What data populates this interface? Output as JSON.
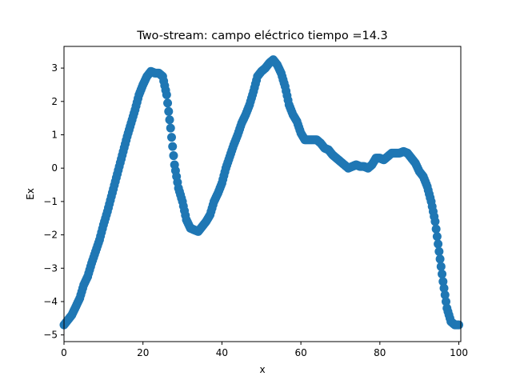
{
  "chart_data": {
    "type": "scatter",
    "title": "Two-stream: campo eléctrico  tiempo =14.3",
    "xlabel": "x",
    "ylabel": "Ex",
    "xlim": [
      0,
      100.5
    ],
    "ylim": [
      -5.2,
      3.65
    ],
    "xticks": [
      0,
      20,
      40,
      60,
      80,
      100
    ],
    "yticks": [
      -5,
      -4,
      -3,
      -2,
      -1,
      0,
      1,
      2,
      3
    ],
    "grid": false,
    "legend": "none",
    "marker_color": "#1f77b4",
    "series": [
      {
        "points": [
          [
            0,
            -4.7
          ],
          [
            1,
            -4.55
          ],
          [
            2,
            -4.4
          ],
          [
            3,
            -4.15
          ],
          [
            4,
            -3.9
          ],
          [
            5,
            -3.5
          ],
          [
            6,
            -3.25
          ],
          [
            7,
            -2.85
          ],
          [
            8,
            -2.5
          ],
          [
            9,
            -2.15
          ],
          [
            10,
            -1.7
          ],
          [
            11,
            -1.3
          ],
          [
            12,
            -0.85
          ],
          [
            13,
            -0.4
          ],
          [
            14,
            0.05
          ],
          [
            15,
            0.5
          ],
          [
            16,
            0.95
          ],
          [
            17,
            1.35
          ],
          [
            18,
            1.75
          ],
          [
            19,
            2.2
          ],
          [
            20,
            2.5
          ],
          [
            21,
            2.75
          ],
          [
            22,
            2.9
          ],
          [
            23,
            2.85
          ],
          [
            24,
            2.85
          ],
          [
            25,
            2.75
          ],
          [
            26,
            2.2
          ],
          [
            27,
            1.2
          ],
          [
            28,
            0.1
          ],
          [
            29,
            -0.6
          ],
          [
            30,
            -1.0
          ],
          [
            31,
            -1.55
          ],
          [
            32,
            -1.8
          ],
          [
            33,
            -1.85
          ],
          [
            34,
            -1.9
          ],
          [
            35,
            -1.75
          ],
          [
            36,
            -1.6
          ],
          [
            37,
            -1.4
          ],
          [
            38,
            -1.0
          ],
          [
            39,
            -0.75
          ],
          [
            40,
            -0.45
          ],
          [
            41,
            0.0
          ],
          [
            42,
            0.35
          ],
          [
            43,
            0.7
          ],
          [
            44,
            1.0
          ],
          [
            45,
            1.35
          ],
          [
            46,
            1.6
          ],
          [
            47,
            1.9
          ],
          [
            48,
            2.3
          ],
          [
            49,
            2.75
          ],
          [
            50,
            2.9
          ],
          [
            51,
            3.0
          ],
          [
            52,
            3.15
          ],
          [
            53,
            3.25
          ],
          [
            54,
            3.1
          ],
          [
            55,
            2.85
          ],
          [
            56,
            2.45
          ],
          [
            57,
            1.9
          ],
          [
            58,
            1.6
          ],
          [
            59,
            1.4
          ],
          [
            60,
            1.05
          ],
          [
            61,
            0.85
          ],
          [
            62,
            0.85
          ],
          [
            63,
            0.85
          ],
          [
            64,
            0.85
          ],
          [
            65,
            0.75
          ],
          [
            66,
            0.6
          ],
          [
            67,
            0.55
          ],
          [
            68,
            0.4
          ],
          [
            69,
            0.3
          ],
          [
            70,
            0.2
          ],
          [
            71,
            0.1
          ],
          [
            72,
            0.0
          ],
          [
            73,
            0.05
          ],
          [
            74,
            0.1
          ],
          [
            75,
            0.05
          ],
          [
            76,
            0.05
          ],
          [
            77,
            0.0
          ],
          [
            78,
            0.1
          ],
          [
            79,
            0.3
          ],
          [
            80,
            0.3
          ],
          [
            81,
            0.25
          ],
          [
            82,
            0.35
          ],
          [
            83,
            0.45
          ],
          [
            84,
            0.45
          ],
          [
            85,
            0.45
          ],
          [
            86,
            0.5
          ],
          [
            87,
            0.45
          ],
          [
            88,
            0.3
          ],
          [
            89,
            0.15
          ],
          [
            90,
            -0.1
          ],
          [
            91,
            -0.25
          ],
          [
            92,
            -0.55
          ],
          [
            93,
            -1.0
          ],
          [
            94,
            -1.6
          ],
          [
            95,
            -2.5
          ],
          [
            96,
            -3.4
          ],
          [
            97,
            -4.2
          ],
          [
            98,
            -4.6
          ],
          [
            99,
            -4.7
          ],
          [
            100,
            -4.7
          ]
        ]
      }
    ]
  }
}
